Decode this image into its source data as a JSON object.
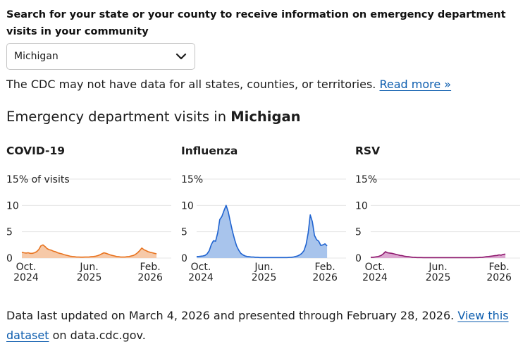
{
  "search": {
    "label": "Search for your state or your county to receive information on emergency department visits in your community",
    "selected": "Michigan"
  },
  "notice": {
    "text": "The CDC may not have data for all states, counties, or territories.",
    "link": "Read more »"
  },
  "section": {
    "title_prefix": "Emergency department visits in ",
    "title_location": "Michigan"
  },
  "footer": {
    "text_before": "Data last updated on March 4, 2026 and presented through February 28, 2026.",
    "link": "View this dataset",
    "text_after": "on data.cdc.gov."
  },
  "chart_data": [
    {
      "type": "area",
      "title": "COVID-19",
      "color": "#e8731f",
      "fill": "#f6c9a8",
      "ylim": [
        0,
        15
      ],
      "yticks": [
        0,
        5,
        10,
        15
      ],
      "ytick_labels": [
        "0",
        "5",
        "10",
        "15% of visits"
      ],
      "xtick_labels": [
        [
          "Oct.",
          "2024"
        ],
        [
          "Jun.",
          "2025"
        ],
        [
          "Feb.",
          "2026"
        ]
      ],
      "xtick_positions": [
        2,
        32,
        61
      ],
      "x_count": 72,
      "values": [
        1.1,
        1.0,
        0.95,
        1.0,
        0.9,
        0.9,
        1.0,
        1.2,
        1.6,
        2.3,
        2.5,
        2.2,
        1.8,
        1.6,
        1.5,
        1.3,
        1.2,
        1.0,
        0.9,
        0.8,
        0.65,
        0.55,
        0.45,
        0.35,
        0.3,
        0.25,
        0.2,
        0.2,
        0.18,
        0.18,
        0.2,
        0.2,
        0.22,
        0.25,
        0.3,
        0.35,
        0.45,
        0.6,
        0.8,
        1.0,
        0.9,
        0.75,
        0.6,
        0.5,
        0.4,
        0.3,
        0.25,
        0.2,
        0.2,
        0.2,
        0.25,
        0.3,
        0.4,
        0.5,
        0.7,
        1.0,
        1.4,
        1.9,
        1.6,
        1.4,
        1.2,
        1.1,
        1.0,
        0.9,
        0.8
      ]
    },
    {
      "type": "area",
      "title": "Influenza",
      "color": "#1f63d0",
      "fill": "#a8c4ec",
      "ylim": [
        0,
        15
      ],
      "yticks": [
        0,
        5,
        10,
        15
      ],
      "ytick_labels": [
        "0",
        "5",
        "10",
        "15%"
      ],
      "xtick_labels": [
        [
          "Oct.",
          "2024"
        ],
        [
          "Jun.",
          "2025"
        ],
        [
          "Feb.",
          "2026"
        ]
      ],
      "xtick_positions": [
        2,
        32,
        61
      ],
      "x_count": 72,
      "values": [
        0.3,
        0.3,
        0.35,
        0.4,
        0.5,
        0.8,
        1.4,
        2.6,
        3.3,
        3.2,
        4.8,
        7.3,
        7.9,
        9.0,
        10.0,
        8.8,
        6.9,
        5.1,
        3.6,
        2.3,
        1.5,
        0.9,
        0.6,
        0.4,
        0.3,
        0.25,
        0.2,
        0.2,
        0.15,
        0.15,
        0.1,
        0.1,
        0.1,
        0.1,
        0.1,
        0.1,
        0.1,
        0.1,
        0.1,
        0.1,
        0.1,
        0.1,
        0.1,
        0.1,
        0.12,
        0.15,
        0.2,
        0.3,
        0.4,
        0.6,
        0.9,
        1.4,
        2.6,
        4.8,
        8.2,
        6.9,
        4.3,
        3.5,
        3.2,
        2.4,
        2.5,
        2.7,
        2.3
      ]
    },
    {
      "type": "area",
      "title": "RSV",
      "color": "#8e1a6e",
      "fill": "#dca7d0",
      "ylim": [
        0,
        15
      ],
      "yticks": [
        0,
        5,
        10,
        15
      ],
      "ytick_labels": [
        "0",
        "5",
        "10",
        "15%"
      ],
      "xtick_labels": [
        [
          "Oct.",
          "2024"
        ],
        [
          "Jun.",
          "2025"
        ],
        [
          "Feb.",
          "2026"
        ]
      ],
      "xtick_positions": [
        2,
        32,
        61
      ],
      "x_count": 72,
      "values": [
        0.15,
        0.15,
        0.2,
        0.25,
        0.35,
        0.5,
        0.8,
        1.2,
        1.0,
        0.95,
        0.9,
        0.8,
        0.7,
        0.6,
        0.5,
        0.45,
        0.35,
        0.3,
        0.25,
        0.2,
        0.15,
        0.12,
        0.1,
        0.1,
        0.1,
        0.08,
        0.08,
        0.08,
        0.08,
        0.08,
        0.08,
        0.08,
        0.08,
        0.08,
        0.08,
        0.08,
        0.08,
        0.08,
        0.08,
        0.08,
        0.08,
        0.08,
        0.08,
        0.08,
        0.08,
        0.08,
        0.08,
        0.08,
        0.08,
        0.08,
        0.1,
        0.1,
        0.12,
        0.15,
        0.2,
        0.25,
        0.3,
        0.35,
        0.4,
        0.45,
        0.5,
        0.6,
        0.55,
        0.7,
        0.75
      ]
    }
  ]
}
